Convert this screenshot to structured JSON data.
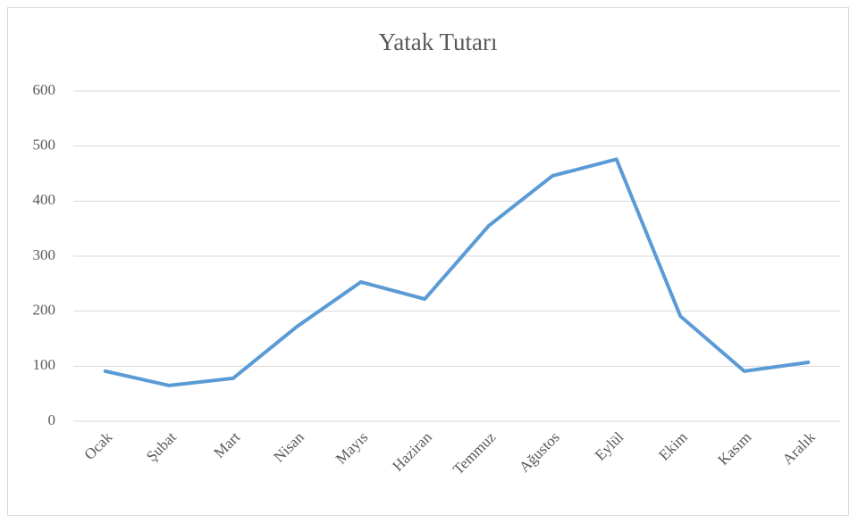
{
  "chart_data": {
    "type": "line",
    "title": "Yatak Tutarı",
    "categories": [
      "Ocak",
      "Şubat",
      "Mart",
      "Nisan",
      "Mayıs",
      "Haziran",
      "Temmuz",
      "Ağustos",
      "Eylül",
      "Ekim",
      "Kasım",
      "Aralık"
    ],
    "series": [
      {
        "name": "Yatak Tutarı",
        "color": "#5b9bd5",
        "values": [
          91,
          65,
          78,
          172,
          253,
          222,
          355,
          446,
          476,
          191,
          91,
          107
        ]
      }
    ],
    "ylim": [
      0,
      600
    ],
    "yticks": [
      0,
      100,
      200,
      300,
      400,
      500,
      600
    ],
    "grid": true
  }
}
